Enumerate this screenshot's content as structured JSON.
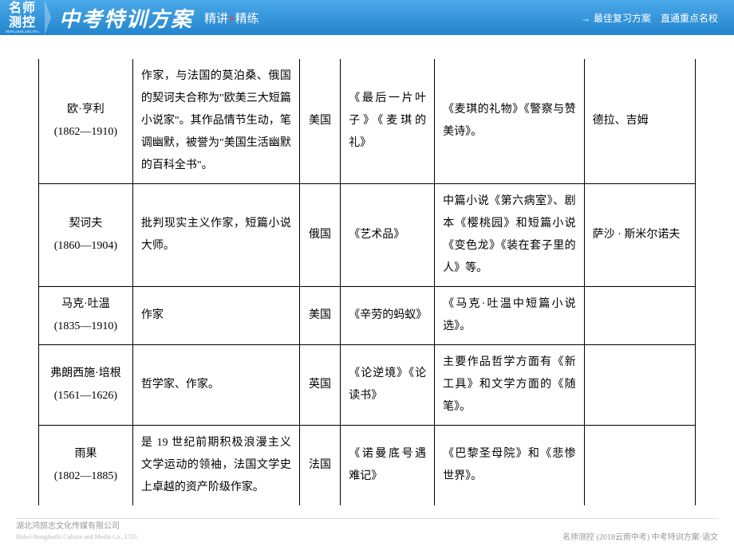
{
  "header": {
    "logo_line1": "名师",
    "logo_line2": "测控",
    "logo_sub": "MINGSHICEKONG",
    "title_main": "中考特训方案",
    "title_sub_a": "精讲",
    "title_sub_plus": "+",
    "title_sub_b": "精练",
    "right_arrow": "→",
    "right_text": "最佳复习方案　直通重点名校"
  },
  "table": {
    "rows": [
      {
        "author": "欧·亨利\n(1862—1910)",
        "desc": "作家，与法国的莫泊桑、俄国的契诃夫合称为\"欧美三大短篇小说家\"。其作品情节生动，笔调幽默，被誉为\"美国生活幽默的百科全书\"。",
        "country": "美国",
        "rep": "《最后一片叶子》《麦琪的礼》",
        "other": "《麦琪的礼物》《警察与赞美诗》。",
        "char": "德拉、吉姆"
      },
      {
        "author": "契诃夫\n(1860—1904)",
        "desc": "批判现实主义作家，短篇小说大师。",
        "country": "俄国",
        "rep": "《艺术品》",
        "other": "中篇小说《第六病室》、剧本《樱桃园》和短篇小说《变色龙》《装在套子里的人》等。",
        "char": "萨沙 · 斯米尔诺夫"
      },
      {
        "author": "马克·吐温\n(1835—1910)",
        "desc": "作家",
        "country": "美国",
        "rep": "《辛劳的蚂蚁》",
        "other": "《马克·吐温中短篇小说选》。",
        "char": ""
      },
      {
        "author": "弗朗西施·培根\n(1561—1626)",
        "desc": "哲学家、作家。",
        "country": "英国",
        "rep": "《论逆境》《论读书》",
        "other": "主要作品哲学方面有《新工具》和文学方面的《随笔》。",
        "char": ""
      },
      {
        "author": "雨果\n(1802—1885)",
        "desc": "是 19 世纪前期积极浪漫主义文学运动的领袖，法国文学史上卓越的资产阶级作家。",
        "country": "法国",
        "rep": "《诺曼底号遇难记》",
        "other": "《巴黎圣母院》和《悲惨世界》。",
        "char": ""
      }
    ]
  },
  "footer": {
    "left_cn": "湖北鸿鹄志文化传媒有限公司",
    "left_en": "Hubei Honghuzhi Culture and Media Co., LTD.",
    "right": "名师测控 (2018云南中考) 中考特训方案·语文"
  },
  "colors": {
    "header_top": "#4aa8e8",
    "header_bottom": "#2385ce",
    "plus": "#ff3b3b",
    "border": "#000000",
    "footer_text": "#999999"
  }
}
